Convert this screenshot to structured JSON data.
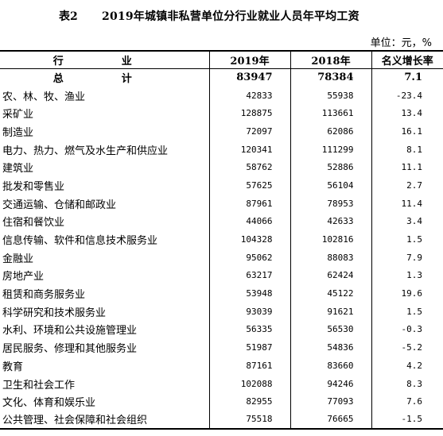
{
  "title": {
    "label": "表2",
    "text": "2019年城镇非私营单位分行业就业人员年平均工资"
  },
  "unit": "单位：元，%",
  "headers": [
    "行　业",
    "2019年",
    "2018年",
    "名义增长率"
  ],
  "total": {
    "name": "总　计",
    "y2019": "83947",
    "y2018": "78384",
    "rate": "7.1"
  },
  "rows": [
    {
      "name": "农、林、牧、渔业",
      "y2019": "42833",
      "y2018": "55938",
      "rate": "-23.4"
    },
    {
      "name": "采矿业",
      "y2019": "128875",
      "y2018": "113661",
      "rate": "13.4"
    },
    {
      "name": "制造业",
      "y2019": "72097",
      "y2018": "62086",
      "rate": "16.1"
    },
    {
      "name": "电力、热力、燃气及水生产和供应业",
      "y2019": "120341",
      "y2018": "111299",
      "rate": "8.1"
    },
    {
      "name": "建筑业",
      "y2019": "58762",
      "y2018": "52886",
      "rate": "11.1"
    },
    {
      "name": "批发和零售业",
      "y2019": "57625",
      "y2018": "56104",
      "rate": "2.7"
    },
    {
      "name": "交通运输、仓储和邮政业",
      "y2019": "87961",
      "y2018": "78953",
      "rate": "11.4"
    },
    {
      "name": "住宿和餐饮业",
      "y2019": "44066",
      "y2018": "42633",
      "rate": "3.4"
    },
    {
      "name": "信息传输、软件和信息技术服务业",
      "y2019": "104328",
      "y2018": "102816",
      "rate": "1.5"
    },
    {
      "name": "金融业",
      "y2019": "95062",
      "y2018": "88083",
      "rate": "7.9"
    },
    {
      "name": "房地产业",
      "y2019": "63217",
      "y2018": "62424",
      "rate": "1.3"
    },
    {
      "name": "租赁和商务服务业",
      "y2019": "53948",
      "y2018": "45122",
      "rate": "19.6"
    },
    {
      "name": "科学研究和技术服务业",
      "y2019": "93039",
      "y2018": "91621",
      "rate": "1.5"
    },
    {
      "name": "水利、环境和公共设施管理业",
      "y2019": "56335",
      "y2018": "56530",
      "rate": "-0.3"
    },
    {
      "name": "居民服务、修理和其他服务业",
      "y2019": "51987",
      "y2018": "54836",
      "rate": "-5.2"
    },
    {
      "name": "教育",
      "y2019": "87161",
      "y2018": "83660",
      "rate": "4.2"
    },
    {
      "name": "卫生和社会工作",
      "y2019": "102088",
      "y2018": "94246",
      "rate": "8.3"
    },
    {
      "name": "文化、体育和娱乐业",
      "y2019": "82955",
      "y2018": "77093",
      "rate": "7.6"
    },
    {
      "name": "公共管理、社会保障和社会组织",
      "y2019": "75518",
      "y2018": "76665",
      "rate": "-1.5"
    }
  ]
}
